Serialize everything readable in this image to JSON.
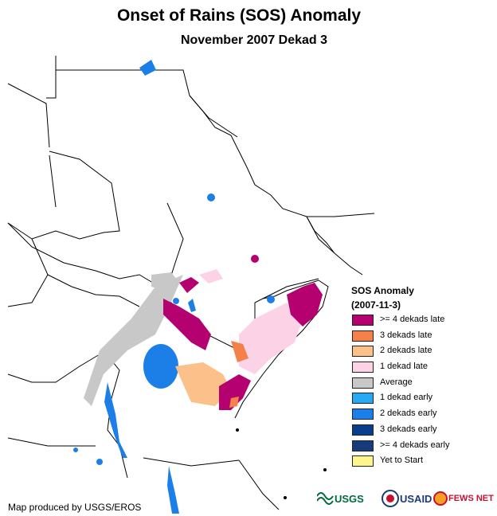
{
  "title": "Onset of Rains (SOS) Anomaly",
  "subtitle": "November 2007 Dekad 3",
  "legend": {
    "title_line1": "SOS Anomaly",
    "title_line2": "(2007-11-3)",
    "items": [
      {
        "label": ">= 4 dekads late",
        "color": "#b5006f"
      },
      {
        "label": "3 dekads late",
        "color": "#f4804a"
      },
      {
        "label": "2 dekads late",
        "color": "#fcc08a"
      },
      {
        "label": "1 dekad late",
        "color": "#fcd3e6"
      },
      {
        "label": "Average",
        "color": "#c8c8c8"
      },
      {
        "label": "1 dekad early",
        "color": "#29a8f4"
      },
      {
        "label": "2 dekads early",
        "color": "#1c7fe8"
      },
      {
        "label": "3 dekads early",
        "color": "#0a3e8c"
      },
      {
        "label": ">= 4 dekads early",
        "color": "#173a7a"
      },
      {
        "label": "Yet to Start",
        "color": "#fdf68a"
      }
    ]
  },
  "credit": "Map produced by USGS/EROS",
  "logos": {
    "usgs": "USGS",
    "usaid": "USAID",
    "fewsnet": "FEWS NET"
  }
}
